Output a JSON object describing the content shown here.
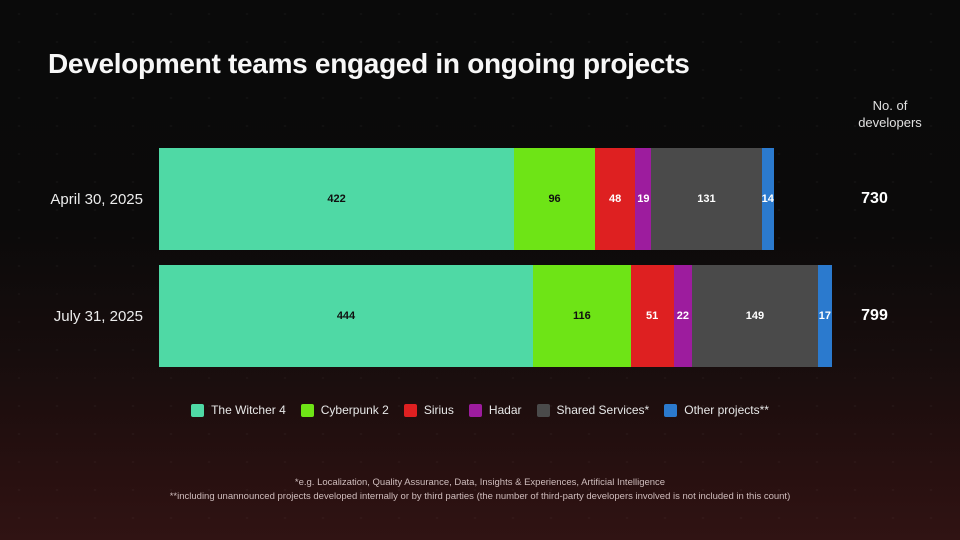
{
  "title": "Development teams engaged in ongoing projects",
  "value_axis_header": "No. of developers",
  "chart_data": {
    "type": "bar",
    "orientation": "horizontal",
    "stacked": true,
    "title": "Development teams engaged in ongoing projects",
    "value_axis_label": "No. of developers",
    "legend_position": "bottom",
    "categories": [
      "April 30, 2025",
      "July 31, 2025"
    ],
    "series": [
      {
        "name": "The Witcher 4",
        "color": "#4fd9a5",
        "text_color": "#101010",
        "values": [
          422,
          444
        ]
      },
      {
        "name": "Cyberpunk 2",
        "color": "#6ee416",
        "text_color": "#101010",
        "values": [
          96,
          116
        ]
      },
      {
        "name": "Sirius",
        "color": "#de2021",
        "text_color": "#ffffff",
        "values": [
          48,
          51
        ]
      },
      {
        "name": "Hadar",
        "color": "#9d1c9e",
        "text_color": "#ffffff",
        "values": [
          19,
          22
        ]
      },
      {
        "name": "Shared Services*",
        "color": "#4a4a4a",
        "text_color": "#ffffff",
        "values": [
          131,
          149
        ]
      },
      {
        "name": "Other projects**",
        "color": "#2b7ace",
        "text_color": "#ffffff",
        "values": [
          14,
          17
        ]
      }
    ],
    "totals": [
      730,
      799
    ]
  },
  "footnotes": [
    "*e.g. Localization, Quality Assurance, Data, Insights & Experiences, Artificial Intelligence",
    "**including unannounced projects developed internally or by third parties (the number of third-party developers involved is not included in this count)"
  ]
}
